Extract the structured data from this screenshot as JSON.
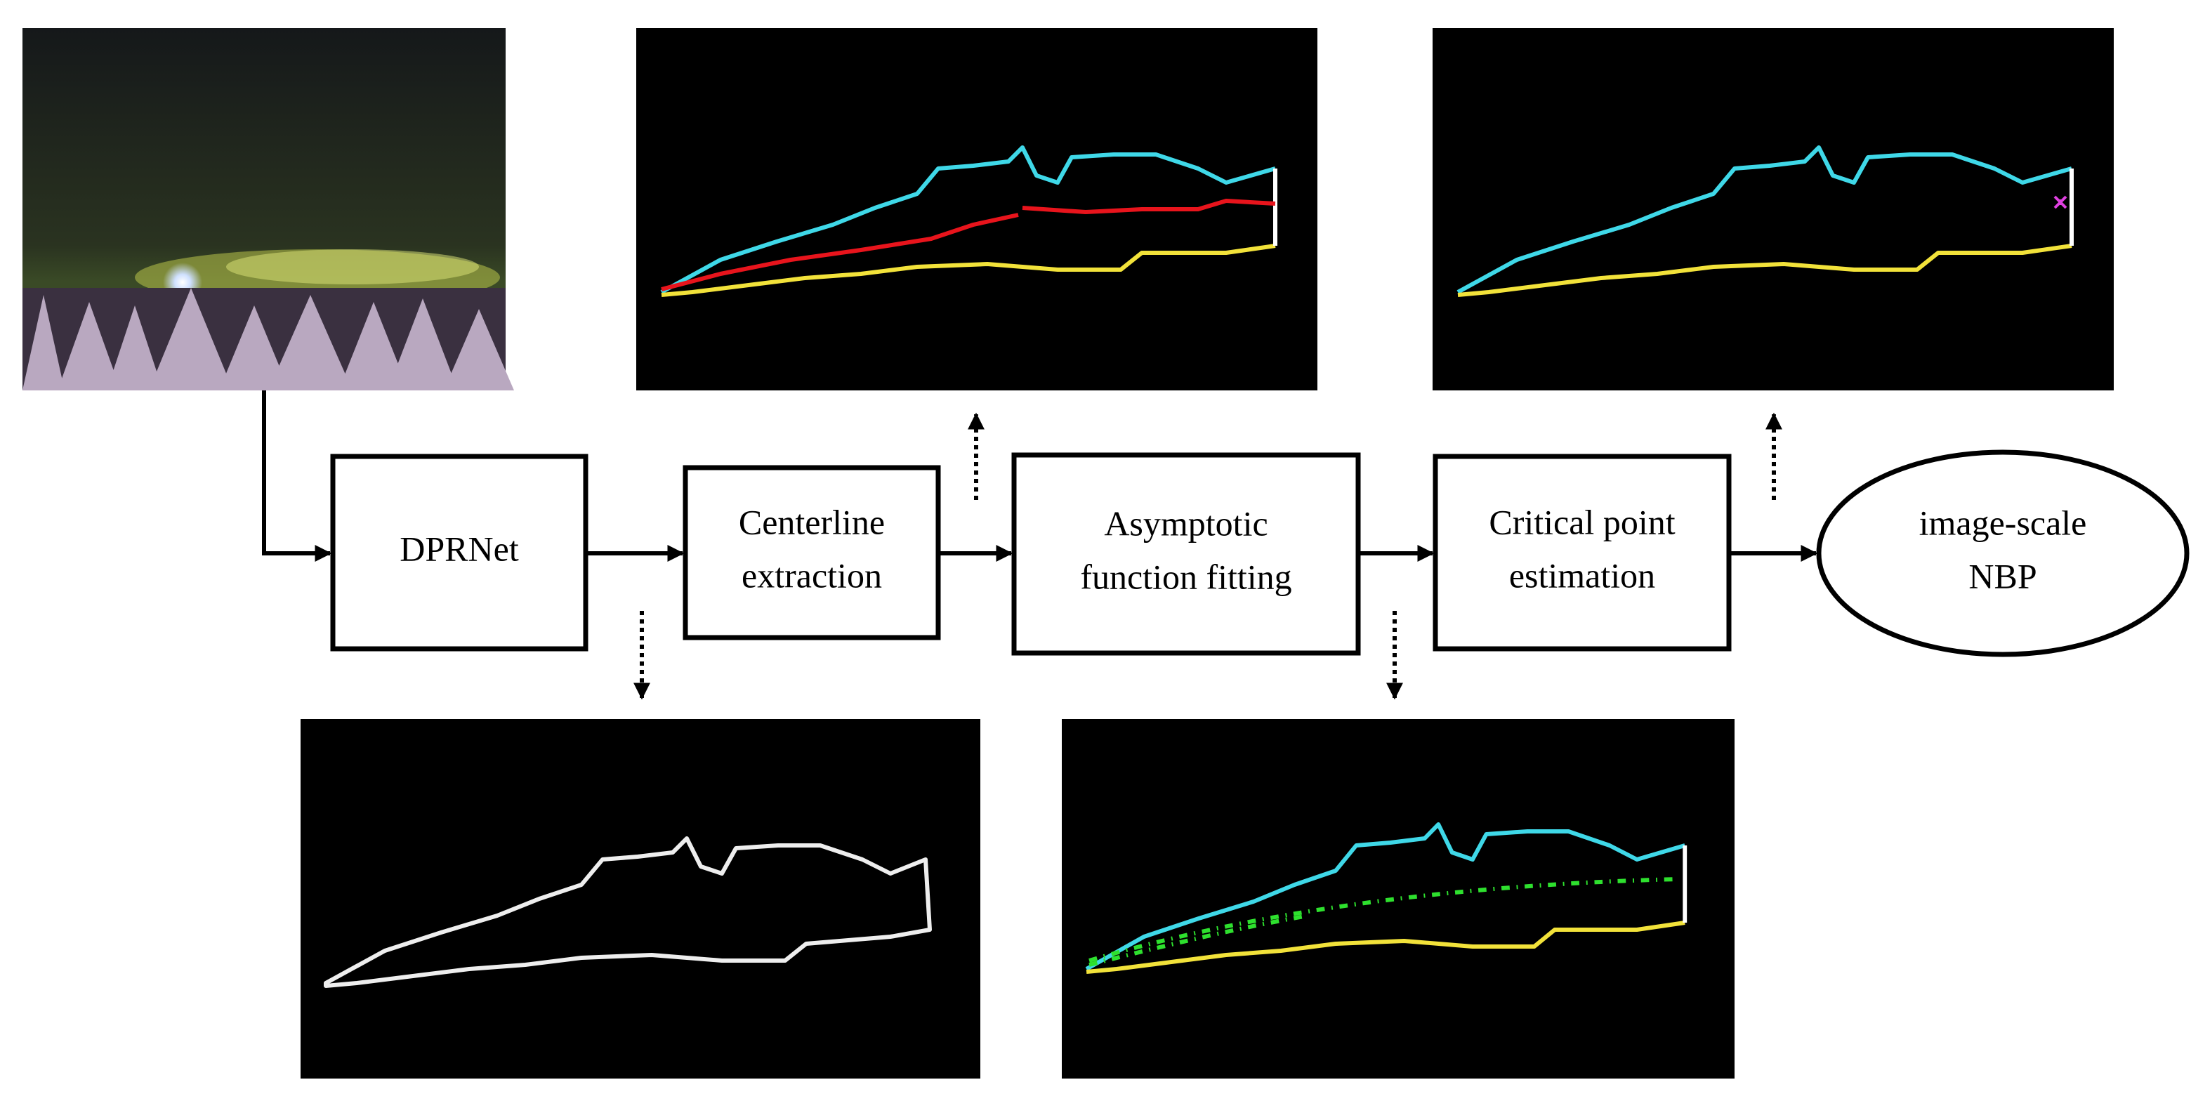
{
  "nodes": [
    {
      "lines": [
        "DPRNet"
      ]
    },
    {
      "lines": [
        "Centerline",
        "extraction"
      ]
    },
    {
      "lines": [
        "Asymptotic",
        "function fitting"
      ]
    },
    {
      "lines": [
        "Critical point",
        "estimation"
      ]
    },
    {
      "lines": [
        "image-scale",
        "NBP"
      ]
    }
  ]
}
